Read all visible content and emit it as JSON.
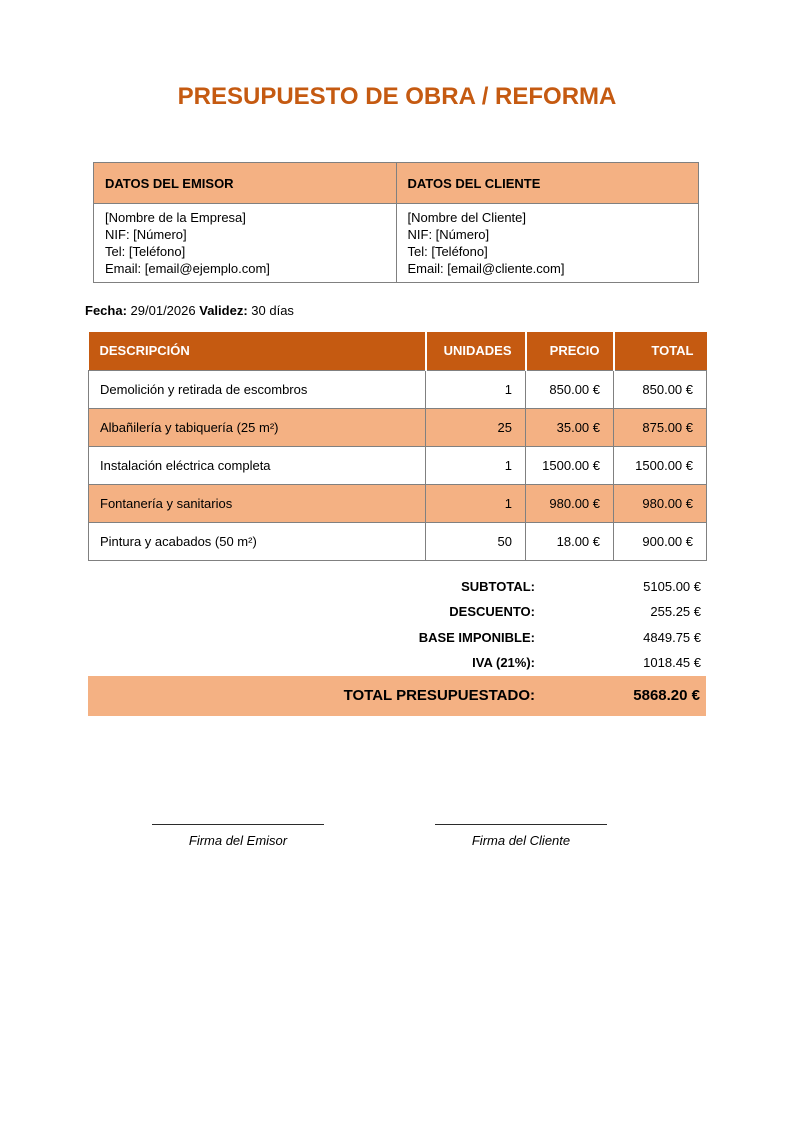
{
  "page": {
    "title": "PRESUPUESTO DE OBRA / REFORMA"
  },
  "colors": {
    "accent_dark": "#C55A11",
    "accent_light": "#F4B183",
    "border_gray": "#808080",
    "title_text": "#C55A11"
  },
  "parties": {
    "emisor": {
      "header": "DATOS DEL EMISOR",
      "lines": [
        "[Nombre de la Empresa]",
        "NIF: [Número]",
        "Tel: [Teléfono]",
        "Email: [email@ejemplo.com]"
      ]
    },
    "cliente": {
      "header": "DATOS DEL CLIENTE",
      "lines": [
        "[Nombre del Cliente]",
        "NIF: [Número]",
        "Tel: [Teléfono]",
        "Email: [email@cliente.com]"
      ]
    }
  },
  "meta": {
    "fecha_label": "Fecha:",
    "fecha_value": "29/01/2026",
    "validez_label": "Validez:",
    "validez_value": "30 días"
  },
  "items_table": {
    "headers": [
      "DESCRIPCIÓN",
      "UNIDADES",
      "PRECIO",
      "TOTAL"
    ],
    "rows": [
      {
        "descripcion": "Demolición y retirada de escombros",
        "unidades": "1",
        "precio": "850.00 €",
        "total": "850.00 €"
      },
      {
        "descripcion": "Albañilería y tabiquería (25 m²)",
        "unidades": "25",
        "precio": "35.00 €",
        "total": "875.00 €"
      },
      {
        "descripcion": "Instalación eléctrica completa",
        "unidades": "1",
        "precio": "1500.00 €",
        "total": "1500.00 €"
      },
      {
        "descripcion": "Fontanería y sanitarios",
        "unidades": "1",
        "precio": "980.00 €",
        "total": "980.00 €"
      },
      {
        "descripcion": "Pintura y acabados (50 m²)",
        "unidades": "50",
        "precio": "18.00 €",
        "total": "900.00 €"
      }
    ]
  },
  "summary": {
    "rows": [
      {
        "label": "SUBTOTAL:",
        "value": "5105.00 €"
      },
      {
        "label": "DESCUENTO:",
        "value": "255.25 €"
      },
      {
        "label": "BASE IMPONIBLE:",
        "value": "4849.75 €"
      },
      {
        "label": "IVA (21%):",
        "value": "1018.45 €"
      }
    ],
    "total_label": "TOTAL PRESUPUESTADO:",
    "total_value": "5868.20 €"
  },
  "signatures": {
    "emisor_label": "Firma del Emisor",
    "cliente_label": "Firma del Cliente"
  }
}
